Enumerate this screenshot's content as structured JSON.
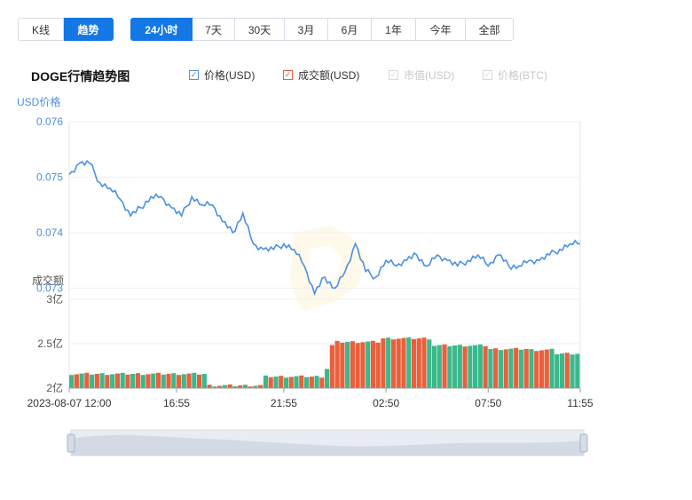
{
  "view_tabs": [
    {
      "label": "K线",
      "active": false
    },
    {
      "label": "趋势",
      "active": true
    }
  ],
  "range_tabs": [
    {
      "label": "24小时",
      "active": true
    },
    {
      "label": "7天",
      "active": false
    },
    {
      "label": "30天",
      "active": false
    },
    {
      "label": "3月",
      "active": false
    },
    {
      "label": "6月",
      "active": false
    },
    {
      "label": "1年",
      "active": false
    },
    {
      "label": "今年",
      "active": false
    },
    {
      "label": "全部",
      "active": false
    }
  ],
  "chart_title": "DOGE行情趋势图",
  "legend": [
    {
      "label": "价格(USD)",
      "checked": true,
      "color": "#4a90e2"
    },
    {
      "label": "成交额(USD)",
      "checked": true,
      "color": "#e8603c"
    },
    {
      "label": "市值(USD)",
      "checked": false,
      "color": "#d8d8d8"
    },
    {
      "label": "价格(BTC)",
      "checked": false,
      "color": "#d8d8d8"
    }
  ],
  "colors": {
    "accent": "#1477e6",
    "price_line": "#4a90e2",
    "volume_up": "#3cb88b",
    "volume_down": "#e8603c",
    "axis_label_blue": "#4a90e2"
  },
  "chart_data": {
    "type": "line",
    "price": {
      "ylabel": "USD价格",
      "ylim": [
        0.0728,
        0.076
      ],
      "ticks": [
        "0.076",
        "0.075",
        "0.074",
        "0.073"
      ],
      "tick_values": [
        0.076,
        0.075,
        0.074,
        0.073
      ],
      "x": [
        0,
        2,
        4,
        6,
        8,
        10,
        12,
        14,
        16,
        18,
        20,
        22,
        24,
        26,
        28,
        30,
        32,
        34,
        36,
        38,
        40,
        42,
        44,
        46,
        48,
        50,
        52,
        54,
        56,
        58,
        60,
        62,
        64,
        66,
        68,
        70,
        72,
        74,
        76,
        78,
        80,
        82,
        84,
        86,
        88,
        90,
        92,
        94,
        96,
        98,
        100
      ],
      "values": [
        0.07505,
        0.07525,
        0.07525,
        0.0749,
        0.0748,
        0.0746,
        0.0743,
        0.07445,
        0.07465,
        0.07465,
        0.07445,
        0.0743,
        0.07465,
        0.0745,
        0.0745,
        0.0742,
        0.074,
        0.07435,
        0.0738,
        0.0737,
        0.0737,
        0.0738,
        0.0737,
        0.0734,
        0.0729,
        0.0732,
        0.073,
        0.0733,
        0.0738,
        0.0733,
        0.0732,
        0.0735,
        0.0734,
        0.0735,
        0.0736,
        0.0734,
        0.0736,
        0.0735,
        0.0734,
        0.0735,
        0.0736,
        0.0734,
        0.0736,
        0.0734,
        0.0734,
        0.0735,
        0.0735,
        0.0736,
        0.0737,
        0.0738,
        0.0738
      ]
    },
    "volume": {
      "ylabel": "成交额",
      "ylim": [
        2,
        3
      ],
      "ticks": [
        "3亿",
        "2.5亿",
        "2亿"
      ],
      "tick_values": [
        3,
        2.5,
        2
      ],
      "bar_count": 100,
      "segments": [
        {
          "from": 0,
          "to": 27,
          "value": 2.16,
          "dir": "mixed"
        },
        {
          "from": 27,
          "to": 38,
          "value": 2.03,
          "dir": "mixed"
        },
        {
          "from": 38,
          "to": 50,
          "value": 2.13,
          "dir": "mixed"
        },
        {
          "from": 50,
          "to": 51,
          "value": 2.22,
          "dir": "down"
        },
        {
          "from": 51,
          "to": 52,
          "value": 2.48,
          "dir": "down"
        },
        {
          "from": 52,
          "to": 61,
          "value": 2.52,
          "dir": "down"
        },
        {
          "from": 61,
          "to": 71,
          "value": 2.56,
          "dir": "down"
        },
        {
          "from": 71,
          "to": 82,
          "value": 2.48,
          "dir": "up"
        },
        {
          "from": 82,
          "to": 90,
          "value": 2.44,
          "dir": "mixed"
        },
        {
          "from": 90,
          "to": 95,
          "value": 2.43,
          "dir": "down"
        },
        {
          "from": 95,
          "to": 100,
          "value": 2.39,
          "dir": "up"
        }
      ]
    },
    "x_ticks": [
      "2023-08-07 12:00",
      "16:55",
      "21:55",
      "02:50",
      "07:50",
      "11:55"
    ],
    "x_tick_positions": [
      0,
      21,
      42,
      62,
      82,
      100
    ]
  }
}
